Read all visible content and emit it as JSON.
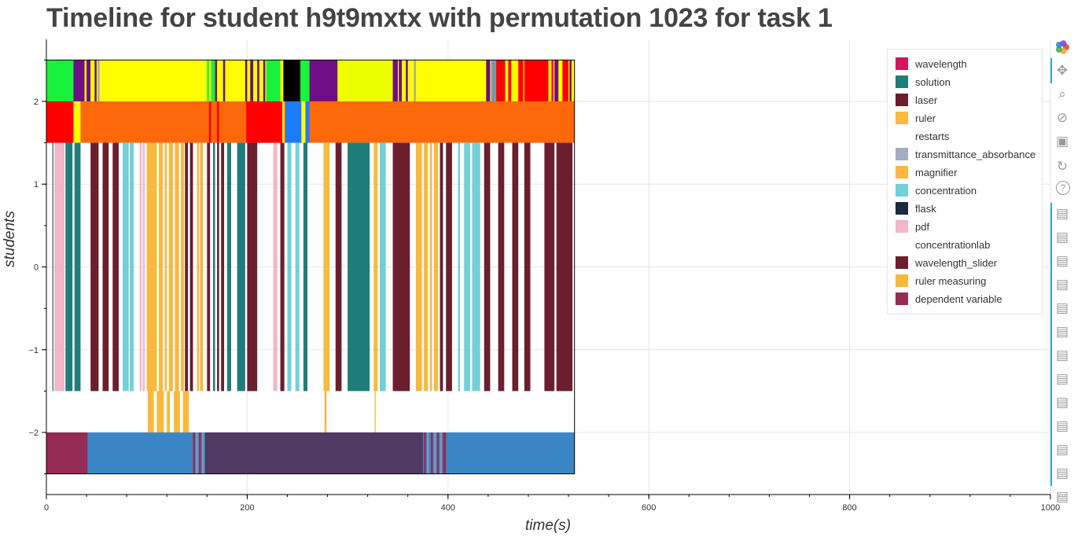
{
  "title": "Timeline for student h9t9mxtx with permutation 1023 for task 1",
  "chart_data": {
    "type": "timeline",
    "title": "Timeline for student h9t9mxtx with permutation 1023 for task 1",
    "xlabel": "time(s)",
    "ylabel": "students",
    "xlim": [
      0,
      1000
    ],
    "ylim": [
      -2.75,
      2.75
    ],
    "grid": true,
    "legend_position": "top-right",
    "x_ticks": [
      "0",
      "200",
      "400",
      "600",
      "800",
      "1000"
    ],
    "y_ticks": [
      "2",
      "1",
      "0",
      "−1",
      "−2"
    ],
    "y_tick_values": [
      2,
      1,
      0,
      -1,
      -2
    ],
    "legend": [
      {
        "label": "wavelength",
        "color": "#d6145b"
      },
      {
        "label": "solution",
        "color": "#1f7d7a"
      },
      {
        "label": "laser",
        "color": "#6b1e2e"
      },
      {
        "label": "ruler",
        "color": "#f9b83e"
      },
      {
        "label": "restarts",
        "color": ""
      },
      {
        "label": "transmittance_absorbance",
        "color": "#a3adc0"
      },
      {
        "label": "magnifier",
        "color": "#f9b83e"
      },
      {
        "label": "concentration",
        "color": "#72d0d8"
      },
      {
        "label": "flask",
        "color": "#1a2b40"
      },
      {
        "label": "pdf",
        "color": "#f2b6c8"
      },
      {
        "label": "concentrationlab",
        "color": ""
      },
      {
        "label": "wavelength_slider",
        "color": "#6b1e2e"
      },
      {
        "label": "ruler measuring",
        "color": "#f9b83e"
      },
      {
        "label": "dependent variable",
        "color": "#952c55"
      }
    ],
    "rows": [
      {
        "name": "row_top",
        "y_range": [
          2,
          2.5
        ],
        "background": "#ffff00",
        "segments": [
          [
            0,
            27,
            "#18f23c"
          ],
          [
            27,
            38,
            "#6f0e86"
          ],
          [
            38,
            40,
            "#ffff00"
          ],
          [
            40,
            44,
            "#6f0e86"
          ],
          [
            44,
            48,
            "#ffff00"
          ],
          [
            48,
            50,
            "#6f0e86"
          ],
          [
            51,
            53,
            "#aaaaaa"
          ],
          [
            160,
            162,
            "#18f23c"
          ],
          [
            162,
            164,
            "#ffff00"
          ],
          [
            164,
            168,
            "#18f23c"
          ],
          [
            168,
            170,
            "#6f0e86"
          ],
          [
            176,
            178,
            "#6f0e86"
          ],
          [
            198,
            200,
            "#6f0e86"
          ],
          [
            203,
            206,
            "#6f0e86"
          ],
          [
            210,
            212,
            "#6f0e86"
          ],
          [
            216,
            218,
            "#6f0e86"
          ],
          [
            219,
            233,
            "#18f23c"
          ],
          [
            233,
            236,
            "#ffff00"
          ],
          [
            236,
            253,
            "#000000"
          ],
          [
            253,
            262,
            "#18f23c"
          ],
          [
            262,
            290,
            "#6f0e86"
          ],
          [
            290,
            345,
            "#eeff00"
          ],
          [
            345,
            350,
            "#6f0e86"
          ],
          [
            351,
            354,
            "#6f0e86"
          ],
          [
            358,
            360,
            "#6f0e86"
          ],
          [
            366,
            368,
            "#aaaaaa"
          ],
          [
            438,
            442,
            "#6f0e86"
          ],
          [
            443,
            448,
            "#7a97b8"
          ],
          [
            448,
            457,
            "#ff0000"
          ],
          [
            460,
            463,
            "#ff0000"
          ],
          [
            470,
            475,
            "#ff0000"
          ],
          [
            476,
            500,
            "#ff0000"
          ],
          [
            503,
            505,
            "#ff0000"
          ],
          [
            506,
            510,
            "#6f0e86"
          ],
          [
            514,
            520,
            "#ff0000"
          ],
          [
            521,
            523,
            "#6f0e86"
          ]
        ]
      },
      {
        "name": "row_second",
        "y_range": [
          1.5,
          2
        ],
        "background": "#fc680a",
        "segments": [
          [
            0,
            27,
            "#ff0000"
          ],
          [
            27,
            34,
            "#ffff00"
          ],
          [
            162,
            164,
            "#ff0000"
          ],
          [
            170,
            172,
            "#ff0000"
          ],
          [
            199,
            235,
            "#ff0000"
          ],
          [
            235,
            237,
            "#ffff00"
          ],
          [
            238,
            254,
            "#1e7bff"
          ],
          [
            254,
            258,
            "#ffff00"
          ],
          [
            258,
            262,
            "#1e7bff"
          ]
        ]
      },
      {
        "name": "row_actions",
        "y_range": [
          -1.5,
          1.5
        ],
        "background": "",
        "segments": [
          [
            6,
            7,
            "#1f7d7a"
          ],
          [
            8,
            18,
            "#f2b6c8"
          ],
          [
            19,
            26,
            "#1f7d7a"
          ],
          [
            28,
            34,
            "#1f7d7a"
          ],
          [
            44,
            52,
            "#6b1e2e"
          ],
          [
            56,
            62,
            "#6b1e2e"
          ],
          [
            66,
            72,
            "#6b1e2e"
          ],
          [
            76,
            82,
            "#72d0d8"
          ],
          [
            83,
            87,
            "#72d0d8"
          ],
          [
            93,
            95,
            "#f2b6c8"
          ],
          [
            96,
            98,
            "#f2b6c8"
          ],
          [
            100,
            110,
            "#f9b83e"
          ],
          [
            112,
            116,
            "#f9b83e"
          ],
          [
            118,
            120,
            "#f9b83e"
          ],
          [
            122,
            126,
            "#f9b83e"
          ],
          [
            128,
            132,
            "#f9b83e"
          ],
          [
            134,
            137,
            "#f9b83e"
          ],
          [
            138,
            141,
            "#6b1e2e"
          ],
          [
            143,
            146,
            "#6b1e2e"
          ],
          [
            150,
            152,
            "#f9b83e"
          ],
          [
            153,
            156,
            "#f9b83e"
          ],
          [
            160,
            163,
            "#6b1e2e"
          ],
          [
            166,
            168,
            "#1f7d7a"
          ],
          [
            170,
            172,
            "#6b1e2e"
          ],
          [
            174,
            177,
            "#6b1e2e"
          ],
          [
            180,
            184,
            "#1f7d7a"
          ],
          [
            190,
            198,
            "#1f7d7a"
          ],
          [
            200,
            210,
            "#6b1e2e"
          ],
          [
            226,
            230,
            "#f2b6c8"
          ],
          [
            233,
            237,
            "#6b1e2e"
          ],
          [
            240,
            244,
            "#72d0d8"
          ],
          [
            248,
            252,
            "#72d0d8"
          ],
          [
            256,
            260,
            "#1f7d7a"
          ],
          [
            276,
            282,
            "#f9b83e"
          ],
          [
            288,
            294,
            "#6b1e2e"
          ],
          [
            300,
            322,
            "#1f7d7a"
          ],
          [
            326,
            330,
            "#f9b83e"
          ],
          [
            332,
            338,
            "#72d0d8"
          ],
          [
            345,
            362,
            "#6b1e2e"
          ],
          [
            368,
            374,
            "#f9b83e"
          ],
          [
            376,
            380,
            "#f9b83e"
          ],
          [
            382,
            384,
            "#f9b83e"
          ],
          [
            386,
            390,
            "#f9b83e"
          ],
          [
            392,
            395,
            "#6b1e2e"
          ],
          [
            398,
            404,
            "#6b1e2e"
          ],
          [
            410,
            412,
            "#72d0d8"
          ],
          [
            416,
            422,
            "#72d0d8"
          ],
          [
            424,
            432,
            "#72d0d8"
          ],
          [
            436,
            442,
            "#6b1e2e"
          ],
          [
            450,
            456,
            "#6b1e2e"
          ],
          [
            464,
            470,
            "#6b1e2e"
          ],
          [
            476,
            482,
            "#6b1e2e"
          ],
          [
            496,
            506,
            "#6b1e2e"
          ],
          [
            508,
            524,
            "#6b1e2e"
          ]
        ]
      },
      {
        "name": "row_ruler_measuring",
        "y_range": [
          -2,
          -1.5
        ],
        "background": "",
        "segments": [
          [
            101,
            107,
            "#f9b83e"
          ],
          [
            110,
            117,
            "#f9b83e"
          ],
          [
            120,
            123,
            "#f9b83e"
          ],
          [
            127,
            133,
            "#f9b83e"
          ],
          [
            136,
            142,
            "#f9b83e"
          ],
          [
            277,
            279,
            "#f9b83e"
          ],
          [
            327,
            328,
            "#f9b83e"
          ]
        ]
      },
      {
        "name": "row_bottom",
        "y_range": [
          -2.5,
          -2
        ],
        "background": "#3b87c6",
        "segments": [
          [
            0,
            41,
            "#952c55"
          ],
          [
            146,
            148,
            "#952c55"
          ],
          [
            149,
            151,
            "#7a97b8"
          ],
          [
            152,
            154,
            "#952c55"
          ],
          [
            155,
            157,
            "#7a97b8"
          ],
          [
            158,
            375,
            "#503963"
          ],
          [
            376,
            378,
            "#952c55"
          ],
          [
            379,
            381,
            "#7a97b8"
          ],
          [
            383,
            385,
            "#952c55"
          ],
          [
            386,
            388,
            "#7a97b8"
          ],
          [
            389,
            391,
            "#952c55"
          ],
          [
            392,
            394,
            "#7a97b8"
          ],
          [
            395,
            398,
            "#952c55"
          ]
        ]
      }
    ],
    "data_extent": [
      0,
      526
    ]
  },
  "toolbar": {
    "tools": [
      "bokeh-logo-icon",
      "pan-icon",
      "box-zoom-icon",
      "wheel-zoom-icon",
      "save-icon",
      "reset-icon",
      "help-icon",
      "hover-icon",
      "hover-icon",
      "hover-icon",
      "hover-icon",
      "hover-icon",
      "hover-icon",
      "hover-icon",
      "hover-icon",
      "hover-icon",
      "hover-icon",
      "hover-icon",
      "hover-icon",
      "hover-icon",
      "more-icon"
    ],
    "logo_colors": [
      "#e5492e",
      "#f0a62a",
      "#46b14a",
      "#2a8bd6",
      "#7a4ed0"
    ]
  }
}
